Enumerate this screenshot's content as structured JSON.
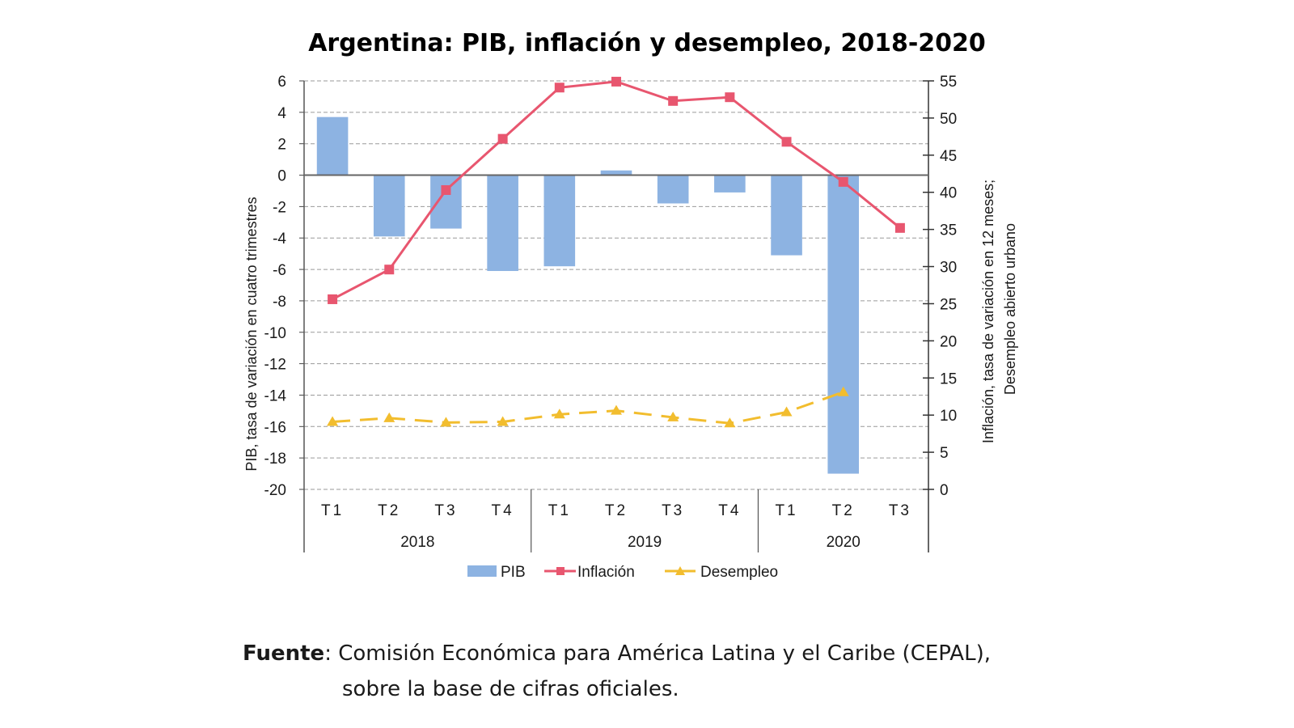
{
  "chart_data": {
    "type": "bar",
    "title": "Argentina: PIB, inflación y desempleo, 2018-2020",
    "categories": [
      "T1",
      "T2",
      "T3",
      "T4",
      "T1",
      "T2",
      "T3",
      "T4",
      "T1",
      "T2",
      "T3"
    ],
    "groups": [
      {
        "label": "2018",
        "count": 4
      },
      {
        "label": "2019",
        "count": 4
      },
      {
        "label": "2020",
        "count": 3
      }
    ],
    "y_left": {
      "label": "PIB, tasa de variación en cuatro trimestres",
      "range": [
        -20,
        6
      ],
      "ticks": [
        6,
        4,
        2,
        0,
        -2,
        -4,
        -6,
        -8,
        -10,
        -12,
        -14,
        -16,
        -18,
        -20
      ]
    },
    "y_right": {
      "label_line1": "Inflación, tasa de variación en 12 meses;",
      "label_line2": "Desempleo abierto urbano",
      "range": [
        0,
        55
      ],
      "ticks": [
        55,
        50,
        45,
        40,
        35,
        30,
        25,
        20,
        15,
        10,
        5,
        0
      ]
    },
    "grid": true,
    "legend_position": "bottom",
    "series": [
      {
        "name": "PIB",
        "type": "bar",
        "axis": "left",
        "color": "#8db3e2",
        "values": [
          3.7,
          -3.9,
          -3.4,
          -6.1,
          -5.8,
          0.3,
          -1.8,
          -1.1,
          -5.1,
          -19.0,
          null
        ]
      },
      {
        "name": "Inflación",
        "type": "line",
        "axis": "right",
        "color": "#e8566f",
        "values": [
          25.6,
          29.6,
          40.3,
          47.2,
          54.1,
          54.9,
          52.3,
          52.8,
          46.8,
          41.4,
          35.2
        ]
      },
      {
        "name": "Desempleo",
        "type": "line",
        "axis": "right",
        "color": "#f2bd2e",
        "dashed": true,
        "values": [
          9.1,
          9.6,
          9.0,
          9.1,
          10.1,
          10.6,
          9.7,
          8.9,
          10.4,
          13.1,
          null
        ]
      }
    ]
  },
  "source": {
    "label": "Fuente",
    "line1": ": Comisión Económica para América Latina y el Caribe (CEPAL),",
    "line2": "sobre la base de cifras oficiales."
  }
}
